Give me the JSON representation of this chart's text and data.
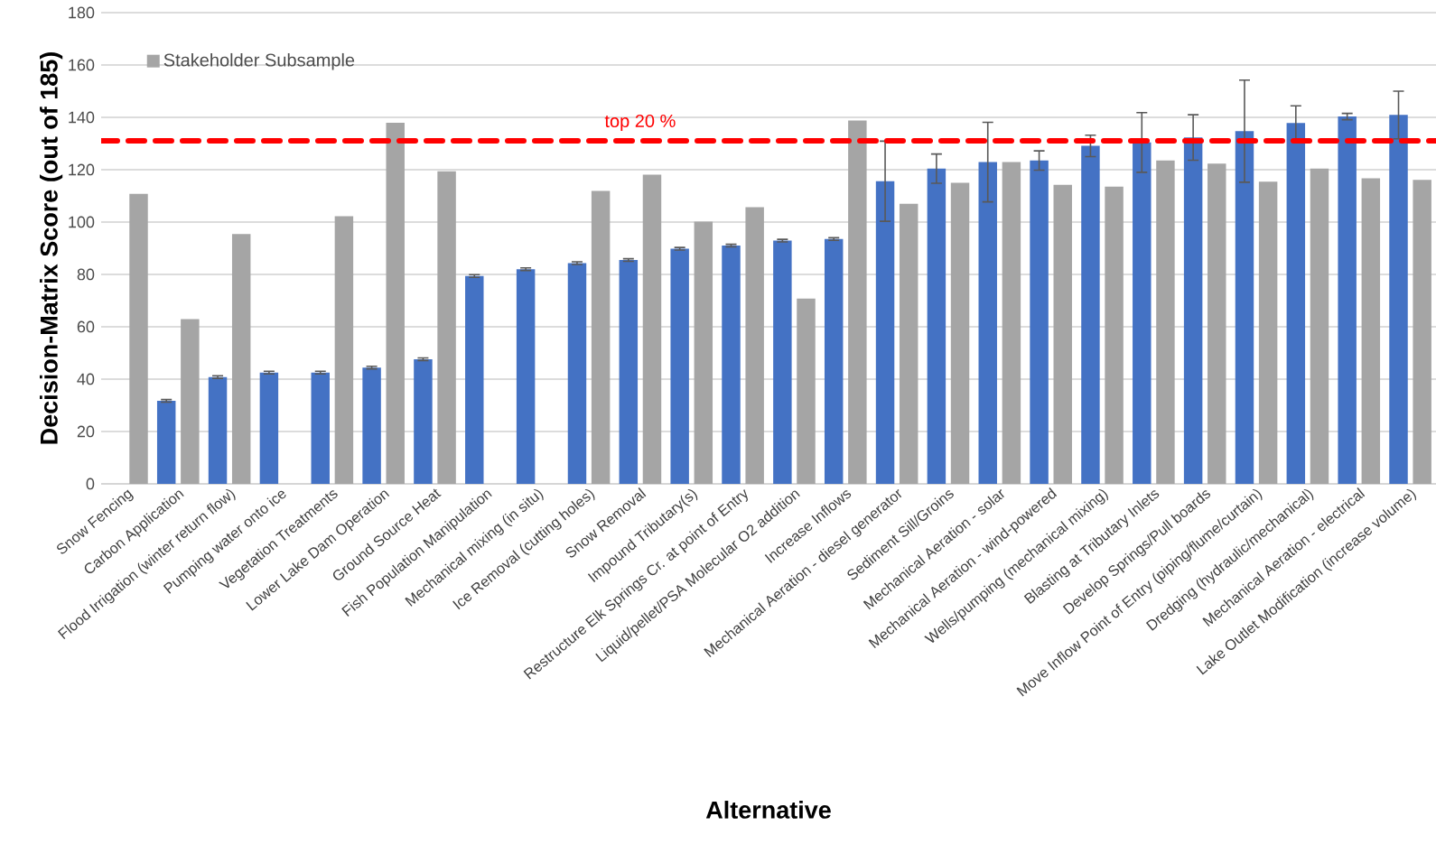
{
  "chart_data": {
    "type": "bar",
    "xlabel": "Alternative",
    "ylabel": "Decision-Matrix Score (out of 185)",
    "categories": [
      "Snow Fencing",
      "Carbon Application",
      "Flood Irrigation (winter return flow)",
      "Pumping water onto ice",
      "Vegetation Treatments",
      "Lower Lake Dam Operation",
      "Ground Source Heat",
      "Fish Population Manipulation",
      "Mechanical mixing (in situ)",
      "Ice Removal (cutting holes)",
      "Snow Removal",
      "Impound Tributary(s)",
      "Restructure Elk Springs Cr. at point of Entry",
      "Liquid/pellet/PSA Molecular O2 addition",
      "Increase Inflows",
      "Mechanical Aeration - diesel generator",
      "Sediment Sill/Groins",
      "Mechanical Aeration - solar",
      "Mechanical Aeration  - wind-powered",
      "Wells/pumping (mechanical mixing)",
      "Blasting at Tributary Inlets",
      "Develop Springs/Pull boards",
      "Move Inflow Point of Entry (piping/flume/curtain)",
      "Dredging (hydraulic/mechanical)",
      "Mechanical Aeration - electrical",
      "Lake Outlet Modification (increase volume)"
    ],
    "series": [
      {
        "color": "#4472c4",
        "values": [
          null,
          31.7,
          40.8,
          42.5,
          42.5,
          44.4,
          47.6,
          79.4,
          82.0,
          84.3,
          85.5,
          89.8,
          91.0,
          92.9,
          93.5,
          115.6,
          120.4,
          122.9,
          123.5,
          129.1,
          130.4,
          132.3,
          134.7,
          137.8,
          140.3,
          140.9
        ],
        "errors": [
          null,
          0.5,
          0.5,
          0.5,
          0.5,
          0.5,
          0.5,
          0.5,
          0.5,
          0.5,
          0.5,
          0.5,
          0.5,
          0.5,
          0.5,
          15.3,
          5.6,
          15.2,
          3.7,
          4.1,
          11.4,
          8.7,
          19.5,
          6.6,
          1.2,
          9.1
        ]
      },
      {
        "name": "Stakeholder Subsample",
        "color": "#a5a5a5",
        "values": [
          110.8,
          62.9,
          95.4,
          null,
          102.2,
          137.9,
          119.4,
          null,
          null,
          111.9,
          118.1,
          100.2,
          105.7,
          70.8,
          138.8,
          107.0,
          115.0,
          122.9,
          114.2,
          113.5,
          123.5,
          122.3,
          115.4,
          120.4,
          116.7,
          116.1
        ]
      }
    ],
    "ylim": [
      0,
      180
    ],
    "yticks": [
      0,
      20,
      40,
      60,
      80,
      100,
      120,
      140,
      160,
      180
    ],
    "grid": "y",
    "legend": "top left",
    "ref_lines": [
      {
        "axis": "y",
        "value": 131,
        "label": "top 20 %",
        "color": "#ff0000",
        "line_style": "dashed"
      }
    ]
  }
}
